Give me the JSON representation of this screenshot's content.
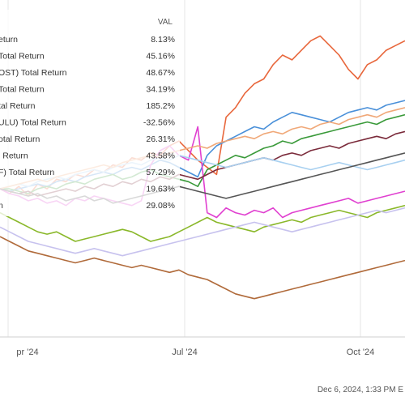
{
  "chart_data": {
    "type": "line",
    "legend": {
      "header": "VAL",
      "entries": [
        {
          "label": "eturn",
          "value": "8.13%"
        },
        {
          "label": "Total Return",
          "value": "45.16%"
        },
        {
          "label": "OST) Total Return",
          "value": "48.67%"
        },
        {
          "label": "Total Return",
          "value": "34.19%"
        },
        {
          "label": "tal Return",
          "value": "185.2%"
        },
        {
          "label": "ULU) Total Return",
          "value": "-32.56%"
        },
        {
          "label": "otal Return",
          "value": "26.31%"
        },
        {
          "label": "l Return",
          "value": "43.58%"
        },
        {
          "label": "F) Total Return",
          "value": "57.29%"
        },
        {
          "label": "",
          "value": "19.63%"
        },
        {
          "label": "n",
          "value": "29.08%"
        }
      ]
    },
    "x_ticks": [
      "pr '24",
      "Jul '24",
      "Oct '24"
    ],
    "footer": "Dec 6, 2024, 1:33 PM E",
    "series": [
      {
        "color": "#e8673c",
        "values": [
          0,
          -2,
          1,
          -3,
          2,
          0,
          4,
          3,
          6,
          5,
          8,
          7,
          10,
          9,
          13,
          12,
          15,
          14,
          18,
          20,
          16,
          12,
          9,
          6,
          30,
          34,
          40,
          44,
          46,
          52,
          56,
          54,
          58,
          62,
          64,
          60,
          56,
          50,
          46,
          52,
          54,
          58,
          60,
          62
        ]
      },
      {
        "color": "#4a90d9",
        "values": [
          0,
          -1,
          0,
          1,
          2,
          1,
          3,
          4,
          3,
          5,
          6,
          7,
          6,
          8,
          9,
          8,
          10,
          12,
          11,
          9,
          7,
          5,
          14,
          18,
          20,
          22,
          24,
          26,
          25,
          28,
          30,
          32,
          31,
          30,
          29,
          28,
          30,
          32,
          33,
          34,
          33,
          35,
          36,
          37
        ]
      },
      {
        "color": "#3a9a3a",
        "values": [
          0,
          0,
          -1,
          -2,
          0,
          1,
          0,
          2,
          3,
          2,
          4,
          5,
          6,
          4,
          5,
          7,
          8,
          6,
          5,
          4,
          3,
          1,
          8,
          10,
          12,
          14,
          13,
          15,
          17,
          18,
          20,
          19,
          21,
          22,
          23,
          24,
          25,
          26,
          27,
          28,
          27,
          29,
          30,
          31
        ]
      },
      {
        "color": "#e040d0",
        "values": [
          0,
          -2,
          -3,
          -5,
          -4,
          -6,
          -5,
          -7,
          -4,
          -5,
          -3,
          -4,
          -5,
          -6,
          -7,
          -5,
          10,
          16,
          18,
          14,
          12,
          26,
          -10,
          -12,
          -8,
          -10,
          -11,
          -9,
          -10,
          -8,
          -12,
          -10,
          -9,
          -8,
          -7,
          -6,
          -5,
          -4,
          -6,
          -5,
          -4,
          -3,
          -2,
          -1
        ]
      },
      {
        "color": "#7a2a3a",
        "values": [
          0,
          -1,
          -2,
          -1,
          -3,
          -2,
          -1,
          0,
          -1,
          1,
          0,
          2,
          1,
          3,
          2,
          4,
          3,
          5,
          4,
          6,
          5,
          4,
          6,
          8,
          9,
          10,
          11,
          12,
          13,
          12,
          14,
          15,
          14,
          16,
          17,
          18,
          17,
          19,
          20,
          21,
          22,
          21,
          23,
          24
        ]
      },
      {
        "color": "#8ab82a",
        "values": [
          -10,
          -12,
          -14,
          -16,
          -18,
          -19,
          -18,
          -20,
          -22,
          -21,
          -20,
          -19,
          -18,
          -17,
          -18,
          -20,
          -22,
          -21,
          -20,
          -18,
          -16,
          -14,
          -12,
          -14,
          -15,
          -16,
          -17,
          -18,
          -16,
          -15,
          -14,
          -13,
          -14,
          -12,
          -11,
          -10,
          -9,
          -10,
          -11,
          -12,
          -10,
          -9,
          -8,
          -7
        ]
      },
      {
        "color": "#b06a3a",
        "values": [
          -20,
          -22,
          -24,
          -26,
          -27,
          -28,
          -29,
          -30,
          -31,
          -30,
          -29,
          -30,
          -31,
          -32,
          -33,
          -32,
          -33,
          -34,
          -35,
          -34,
          -36,
          -37,
          -38,
          -40,
          -42,
          -44,
          -45,
          -46,
          -45,
          -44,
          -43,
          -42,
          -41,
          -40,
          -39,
          -38,
          -37,
          -36,
          -35,
          -34,
          -33,
          -32,
          -31,
          -30
        ]
      },
      {
        "color": "#c7c2ee",
        "values": [
          -16,
          -18,
          -20,
          -22,
          -23,
          -24,
          -25,
          -26,
          -27,
          -26,
          -25,
          -26,
          -27,
          -28,
          -27,
          -26,
          -25,
          -24,
          -23,
          -22,
          -21,
          -20,
          -19,
          -18,
          -17,
          -16,
          -15,
          -14,
          -15,
          -16,
          -17,
          -18,
          -17,
          -16,
          -15,
          -14,
          -13,
          -12,
          -11,
          -10,
          -9,
          -10,
          -9,
          -8
        ]
      },
      {
        "color": "#a8d0f0",
        "values": [
          0,
          1,
          2,
          1,
          3,
          4,
          5,
          4,
          6,
          7,
          8,
          7,
          9,
          10,
          11,
          10,
          12,
          13,
          12,
          14,
          13,
          12,
          11,
          10,
          9,
          10,
          11,
          12,
          13,
          12,
          11,
          10,
          9,
          8,
          9,
          10,
          11,
          10,
          9,
          8,
          9,
          10,
          11,
          12
        ]
      },
      {
        "color": "#f0a878",
        "values": [
          0,
          1,
          2,
          3,
          4,
          3,
          5,
          6,
          7,
          8,
          9,
          10,
          9,
          11,
          12,
          13,
          14,
          13,
          15,
          16,
          17,
          18,
          17,
          19,
          20,
          21,
          22,
          21,
          23,
          24,
          23,
          25,
          26,
          25,
          27,
          28,
          27,
          29,
          30,
          31,
          30,
          32,
          33,
          34
        ]
      },
      {
        "color": "#555555",
        "values": [
          0,
          -1,
          -2,
          -3,
          -2,
          -4,
          -3,
          -5,
          -4,
          -3,
          -5,
          -4,
          -6,
          -5,
          -4,
          -3,
          -2,
          -1,
          0,
          1,
          0,
          -1,
          -2,
          -3,
          -4,
          -3,
          -2,
          -1,
          0,
          1,
          2,
          3,
          4,
          5,
          6,
          7,
          8,
          9,
          10,
          11,
          12,
          13,
          14,
          15
        ]
      }
    ]
  }
}
